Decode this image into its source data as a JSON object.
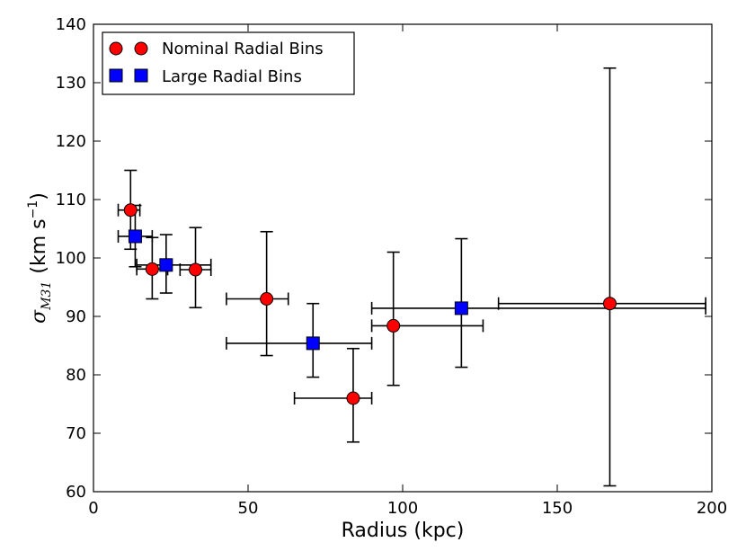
{
  "chart_data": {
    "type": "scatter",
    "title": "",
    "xlabel": "Radius (kpc)",
    "ylabel": {
      "symbol": "σ",
      "subscript": "M31",
      "units_prefix": "(km s",
      "units_exponent": "−1",
      "units_suffix": ")"
    },
    "xlim": [
      0,
      200
    ],
    "ylim": [
      60,
      140
    ],
    "xticks": [
      0,
      50,
      100,
      150,
      200
    ],
    "yticks": [
      60,
      70,
      80,
      90,
      100,
      110,
      120,
      130,
      140
    ],
    "legend_position": "top-left",
    "series": [
      {
        "name": "Nominal Radial Bins",
        "marker": "circle",
        "color": "#ff0000",
        "points": [
          {
            "x": 12,
            "y": 108.2,
            "xerr": [
              8,
              15
            ],
            "yerr": [
              101.5,
              115
            ]
          },
          {
            "x": 19,
            "y": 98.1,
            "xerr": [
              14,
              24
            ],
            "yerr": [
              93,
              103.5
            ]
          },
          {
            "x": 33,
            "y": 98,
            "xerr": [
              28,
              38
            ],
            "yerr": [
              91.5,
              105.2
            ]
          },
          {
            "x": 56,
            "y": 93,
            "xerr": [
              43,
              63
            ],
            "yerr": [
              83.3,
              104.5
            ]
          },
          {
            "x": 84,
            "y": 76,
            "xerr": [
              65,
              90
            ],
            "yerr": [
              68.5,
              84.5
            ]
          },
          {
            "x": 97,
            "y": 88.4,
            "xerr": [
              90,
              126
            ],
            "yerr": [
              78.2,
              101
            ]
          },
          {
            "x": 167,
            "y": 92.2,
            "xerr": [
              131,
              198
            ],
            "yerr": [
              61,
              132.5
            ]
          }
        ]
      },
      {
        "name": "Large Radial Bins",
        "marker": "square",
        "color": "#0000ff",
        "points": [
          {
            "x": 13.5,
            "y": 103.7,
            "xerr": [
              8,
              19
            ],
            "yerr": [
              98.5,
              109
            ]
          },
          {
            "x": 23.5,
            "y": 98.8,
            "xerr": [
              14,
              38
            ],
            "yerr": [
              94,
              104
            ]
          },
          {
            "x": 71,
            "y": 85.4,
            "xerr": [
              43,
              90
            ],
            "yerr": [
              79.6,
              92.2
            ]
          },
          {
            "x": 119,
            "y": 91.4,
            "xerr": [
              90,
              198
            ],
            "yerr": [
              81.3,
              103.3
            ]
          }
        ]
      }
    ]
  }
}
